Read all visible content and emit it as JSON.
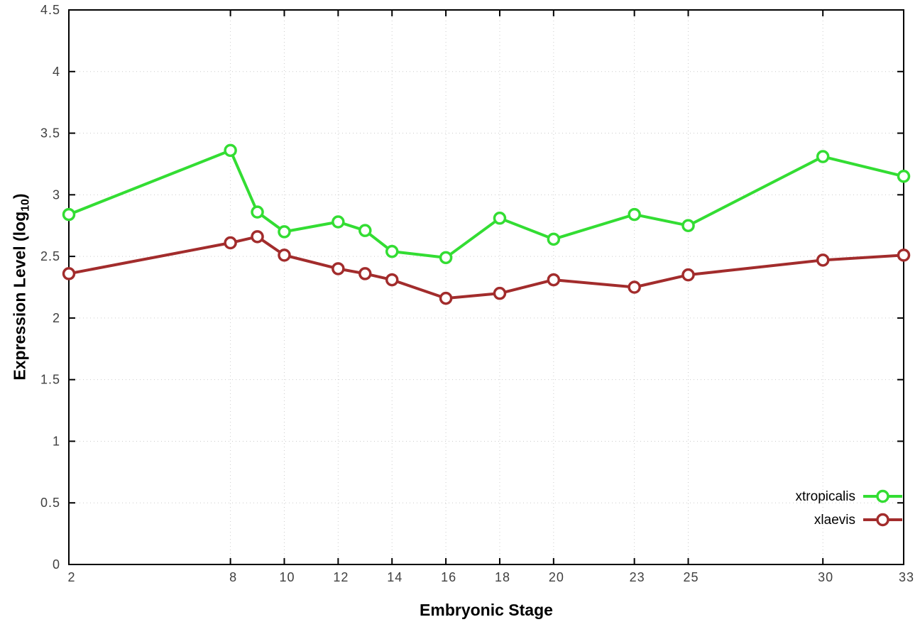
{
  "chart_data": {
    "type": "line",
    "title": "",
    "xlabel": "Embryonic Stage",
    "ylabel": "Expression Level (log10)",
    "ylabel_parts": {
      "prefix": "Expression Level (log",
      "sub": "10",
      "suffix": ")"
    },
    "xlim": [
      2,
      33
    ],
    "ylim": [
      0,
      4.5
    ],
    "xticks": [
      2,
      8,
      10,
      12,
      14,
      16,
      18,
      20,
      23,
      25,
      30,
      33
    ],
    "yticks": [
      0,
      0.5,
      1,
      1.5,
      2,
      2.5,
      3,
      3.5,
      4,
      4.5
    ],
    "ytick_labels": [
      "0",
      "0.5",
      "1",
      "1.5",
      "2",
      "2.5",
      "3",
      "3.5",
      "4",
      "4.5"
    ],
    "grid": true,
    "legend_position": "bottom-right",
    "x": [
      2,
      8,
      9,
      10,
      12,
      13,
      14,
      16,
      18,
      20,
      23,
      25,
      30,
      33
    ],
    "series": [
      {
        "name": "xtropicalis",
        "color": "#33dd33",
        "values": [
          2.84,
          3.36,
          2.86,
          2.7,
          2.78,
          2.71,
          2.54,
          2.49,
          2.81,
          2.64,
          2.84,
          2.75,
          3.31,
          3.15
        ]
      },
      {
        "name": "xlaevis",
        "color": "#a22c2c",
        "values": [
          2.36,
          2.61,
          2.66,
          2.51,
          2.4,
          2.36,
          2.31,
          2.16,
          2.2,
          2.31,
          2.25,
          2.35,
          2.47,
          2.51
        ]
      }
    ]
  },
  "style": {
    "grid_color": "#cccccc",
    "axis_color": "#000000",
    "tick_label_color": "#404040",
    "marker_fill": "#ffffff"
  }
}
